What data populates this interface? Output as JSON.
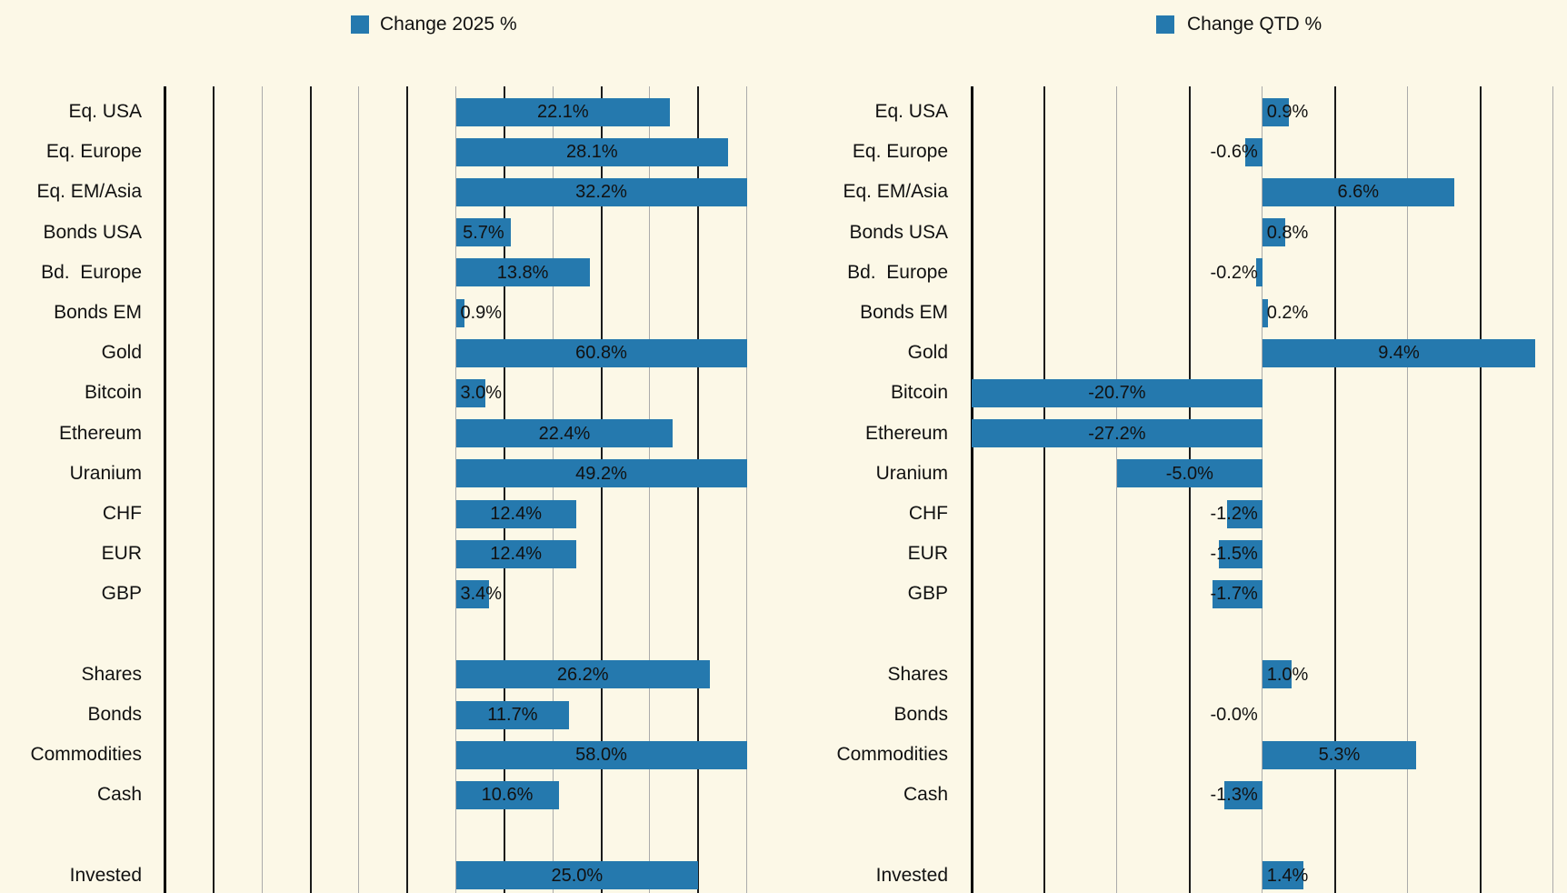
{
  "page": {
    "background_color": "#FCF8E7",
    "bar_color": "#2579AE",
    "text_color": "#111111",
    "gridline_dark_color": "#1A1A1A",
    "gridline_light_color": "#ABABAB",
    "axis_border_color": "#000000"
  },
  "legends": [
    {
      "label": "Change 2025 %",
      "swatch_color": "#2579AE"
    },
    {
      "label": "Change QTD %",
      "swatch_color": "#2579AE"
    }
  ],
  "chart_data": [
    {
      "type": "bar",
      "orientation": "horizontal",
      "title": "Change 2025 %",
      "legend_position": "top",
      "grid": true,
      "xlim": [
        -30,
        30
      ],
      "grid_step_pct": 5,
      "bars_clipped_at_xlim": true,
      "categories": [
        "Eq. USA",
        "Eq. Europe",
        "Eq. EM/Asia",
        "Bonds USA",
        "Bd.  Europe",
        "Bonds EM",
        "Gold",
        "Bitcoin",
        "Ethereum",
        "Uranium",
        "CHF",
        "EUR",
        "GBP",
        "",
        "Shares",
        "Bonds",
        "Commodities",
        "Cash",
        "",
        "Invested"
      ],
      "values": [
        22.1,
        28.1,
        32.2,
        5.7,
        13.8,
        0.9,
        60.8,
        3.0,
        22.4,
        49.2,
        12.4,
        12.4,
        3.4,
        null,
        26.2,
        11.7,
        58.0,
        10.6,
        null,
        25.0
      ],
      "value_labels": [
        "22.1%",
        "28.1%",
        "32.2%",
        "5.7%",
        "13.8%",
        "0.9%",
        "60.8%",
        "3.0%",
        "22.4%",
        "49.2%",
        "12.4%",
        "12.4%",
        "3.4%",
        null,
        "26.2%",
        "11.7%",
        "58.0%",
        "10.6%",
        null,
        "25.0%"
      ]
    },
    {
      "type": "bar",
      "orientation": "horizontal",
      "title": "Change QTD %",
      "legend_position": "top",
      "grid": true,
      "xlim": [
        -10,
        10
      ],
      "grid_step_pct": 2.5,
      "bars_clipped_at_xlim": true,
      "categories": [
        "Eq. USA",
        "Eq. Europe",
        "Eq. EM/Asia",
        "Bonds USA",
        "Bd.  Europe",
        "Bonds EM",
        "Gold",
        "Bitcoin",
        "Ethereum",
        "Uranium",
        "CHF",
        "EUR",
        "GBP",
        "",
        "Shares",
        "Bonds",
        "Commodities",
        "Cash",
        "",
        "Invested"
      ],
      "values": [
        0.9,
        -0.6,
        6.6,
        0.8,
        -0.2,
        0.2,
        9.4,
        -20.7,
        -27.2,
        -5.0,
        -1.2,
        -1.5,
        -1.7,
        null,
        1.0,
        0.0,
        5.3,
        -1.3,
        null,
        1.4
      ],
      "value_labels": [
        "0.9%",
        "-0.6%",
        "6.6%",
        "0.8%",
        "-0.2%",
        "0.2%",
        "9.4%",
        "-20.7%",
        "-27.2%",
        "-5.0%",
        "-1.2%",
        "-1.5%",
        "-1.7%",
        null,
        "1.0%",
        "-0.0%",
        "5.3%",
        "-1.3%",
        null,
        "1.4%"
      ]
    }
  ]
}
